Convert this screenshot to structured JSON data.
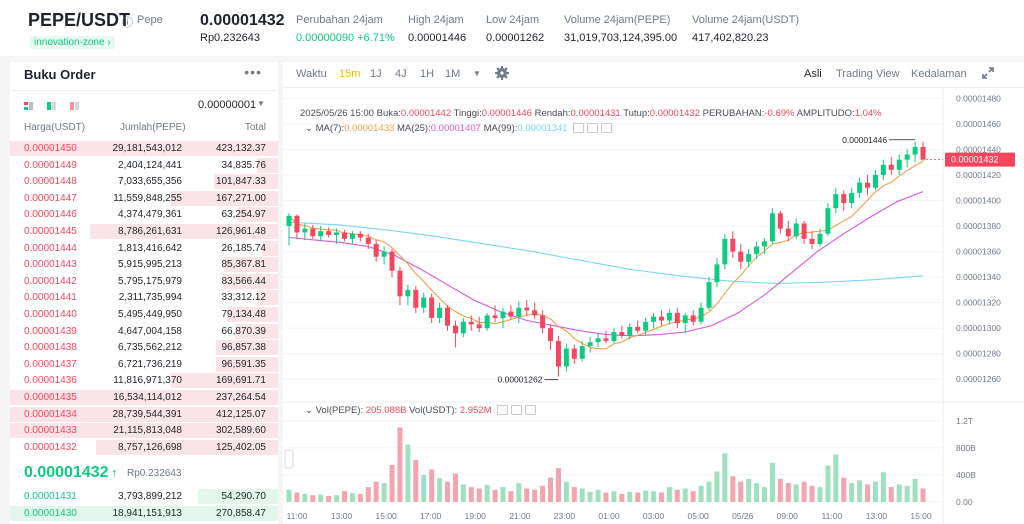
{
  "header": {
    "pair": "PEPE/USDT",
    "coin_name": "Pepe",
    "zone": "innovation-zone",
    "last_price": "0.00001432",
    "last_price_idr": "Rp0.232643",
    "stats": [
      {
        "label": "Perubahan 24jam",
        "value": "0.00000090 +6.71%",
        "color": "#0ecb81"
      },
      {
        "label": "High 24jam",
        "value": "0.00001446",
        "color": "#1e2329"
      },
      {
        "label": "Low 24jam",
        "value": "0.00001262",
        "color": "#1e2329"
      },
      {
        "label": "Volume 24jam(PEPE)",
        "value": "31,019,703,124,395.00",
        "color": "#1e2329"
      },
      {
        "label": "Volume 24jam(USDT)",
        "value": "417,402,820.23",
        "color": "#1e2329"
      }
    ]
  },
  "orderbook": {
    "title": "Buku Order",
    "more_icon": "more-dots-icon",
    "tick_size": "0.00000001",
    "headers": {
      "price": "Harga(USDT)",
      "amount": "Jumlah(PEPE)",
      "total": "Total"
    },
    "asks": [
      {
        "price": "0.00001450",
        "amount": "29,181,543,012",
        "total": "423,132.37",
        "depth": 1.0
      },
      {
        "price": "0.00001449",
        "amount": "2,404,124,441",
        "total": "34,835.76",
        "depth": 0.08
      },
      {
        "price": "0.00001448",
        "amount": "7,033,655,356",
        "total": "101,847.33",
        "depth": 0.24
      },
      {
        "price": "0.00001447",
        "amount": "11,559,848,255",
        "total": "167,271.00",
        "depth": 0.4
      },
      {
        "price": "0.00001446",
        "amount": "4,374,479,361",
        "total": "63,254.97",
        "depth": 0.15
      },
      {
        "price": "0.00001445",
        "amount": "8,786,261,631",
        "total": "126,961.48",
        "depth": 0.7
      },
      {
        "price": "0.00001444",
        "amount": "1,813,416,642",
        "total": "26,185.74",
        "depth": 0.06
      },
      {
        "price": "0.00001443",
        "amount": "5,915,995,213",
        "total": "85,367.81",
        "depth": 0.2
      },
      {
        "price": "0.00001442",
        "amount": "5,795,175,979",
        "total": "83,566.44",
        "depth": 0.2
      },
      {
        "price": "0.00001441",
        "amount": "2,311,735,994",
        "total": "33,312.12",
        "depth": 0.08
      },
      {
        "price": "0.00001440",
        "amount": "5,495,449,950",
        "total": "79,134.48",
        "depth": 0.19
      },
      {
        "price": "0.00001439",
        "amount": "4,647,004,158",
        "total": "66,870.39",
        "depth": 0.16
      },
      {
        "price": "0.00001438",
        "amount": "6,735,562,212",
        "total": "96,857.38",
        "depth": 0.23
      },
      {
        "price": "0.00001437",
        "amount": "6,721,736,219",
        "total": "96,591.35",
        "depth": 0.23
      },
      {
        "price": "0.00001436",
        "amount": "11,816,971,370",
        "total": "169,691.71",
        "depth": 0.4
      },
      {
        "price": "0.00001435",
        "amount": "16,534,114,012",
        "total": "237,264.54",
        "depth": 1.0
      },
      {
        "price": "0.00001434",
        "amount": "28,739,544,391",
        "total": "412,125.07",
        "depth": 1.0
      },
      {
        "price": "0.00001433",
        "amount": "21,115,813,048",
        "total": "302,589.60",
        "depth": 1.0
      },
      {
        "price": "0.00001432",
        "amount": "8,757,126,698",
        "total": "125,402.05",
        "depth": 0.68
      }
    ],
    "mid_price": "0.00001432",
    "mid_arrow": "↑",
    "mid_price_idr": "Rp0.232643",
    "bids": [
      {
        "price": "0.00001431",
        "amount": "3,793,899,212",
        "total": "54,290.70",
        "depth": 0.3
      },
      {
        "price": "0.00001430",
        "amount": "18,941,151,913",
        "total": "270,858.47",
        "depth": 1.0
      }
    ]
  },
  "toolbar": {
    "time_label": "Waktu",
    "intervals": [
      "15m",
      "1J",
      "4J",
      "1H",
      "1M"
    ],
    "active_interval": "15m",
    "views": [
      "Asli",
      "Trading View",
      "Kedalaman"
    ],
    "active_view": "Asli",
    "settings_icon": "gear-icon",
    "fullscreen_icon": "expand-icon"
  },
  "legend": {
    "date": "2025/05/26 15:00",
    "open_label": "Buka:",
    "open": "0.00001442",
    "high_label": "Tinggi:",
    "high": "0.00001446",
    "low_label": "Rendah:",
    "low": "0.00001431",
    "close_label": "Tutup:",
    "close": "0.00001432",
    "change_label": "PERUBAHAN:",
    "change": "-0.69%",
    "amp_label": "AMPLITUDO:",
    "amp": "1.04%",
    "ma7_label": "MA(7):",
    "ma7": "0.00001433",
    "ma25_label": "MA(25):",
    "ma25": "0.00001407",
    "ma99_label": "MA(99):",
    "ma99": "0.00001341",
    "vol_pepe_label": "Vol(PEPE):",
    "vol_pepe": "205.088B",
    "vol_usdt_label": "Vol(USDT):",
    "vol_usdt": "2.952M"
  },
  "chart_data": {
    "type": "candlestick",
    "interval": "15m",
    "price_axis_ticks": [
      "0.00001480",
      "0.00001460",
      "0.00001440",
      "0.00001420",
      "0.00001400",
      "0.00001380",
      "0.00001360",
      "0.00001340",
      "0.00001320",
      "0.00001300",
      "0.00001280",
      "0.00001260"
    ],
    "price_range": [
      1.25e-05,
      1.485e-05
    ],
    "volume_axis_ticks": [
      "1.2T",
      "800B",
      "400B",
      "0.00"
    ],
    "volume_range": [
      0,
      1.3
    ],
    "volume_unit": "T",
    "time_axis_ticks": [
      "11:00",
      "13:00",
      "15:00",
      "17:00",
      "19:00",
      "21:00",
      "23:00",
      "01:00",
      "03:00",
      "05:00",
      "05/26",
      "09:00",
      "11:00",
      "13:00",
      "15:00"
    ],
    "high_marker": "0.00001446",
    "low_marker": "0.00001262",
    "current_price_tag": "0.00001432",
    "colors": {
      "up": "#0ecb81",
      "down": "#f6465d",
      "up_vol": "#9fe0c0",
      "down_vol": "#f3a4ae",
      "ma7": "#f0a04b",
      "ma25": "#d958d9",
      "ma99": "#7ad7f0"
    },
    "ma25": [
      1.371e-05,
      1.369e-05,
      1.367e-05,
      1.364e-05,
      1.357e-05,
      1.346e-05,
      1.334e-05,
      1.322e-05,
      1.313e-05,
      1.306e-05,
      1.302e-05,
      1.298e-05,
      1.295e-05,
      1.294e-05,
      1.295e-05,
      1.297e-05,
      1.302e-05,
      1.312e-05,
      1.326e-05,
      1.343e-05,
      1.36e-05,
      1.374e-05,
      1.387e-05,
      1.399e-05,
      1.407e-05
    ],
    "ma99": [
      1.383e-05,
      1.381e-05,
      1.377e-05,
      1.372e-05,
      1.366e-05,
      1.36e-05,
      1.353e-05,
      1.346e-05,
      1.341e-05,
      1.337e-05,
      1.335e-05,
      1.336e-05,
      1.338e-05,
      1.341e-05
    ],
    "candles": [
      {
        "o": 1.38e-05,
        "h": 1.39e-05,
        "l": 1.365e-05,
        "c": 1.388e-05
      },
      {
        "o": 1.388e-05,
        "h": 1.389e-05,
        "l": 1.37e-05,
        "c": 1.375e-05
      },
      {
        "o": 1.375e-05,
        "h": 1.382e-05,
        "l": 1.369e-05,
        "c": 1.378e-05
      },
      {
        "o": 1.378e-05,
        "h": 1.381e-05,
        "l": 1.37e-05,
        "c": 1.372e-05
      },
      {
        "o": 1.372e-05,
        "h": 1.38e-05,
        "l": 1.368e-05,
        "c": 1.376e-05
      },
      {
        "o": 1.376e-05,
        "h": 1.379e-05,
        "l": 1.371e-05,
        "c": 1.373e-05
      },
      {
        "o": 1.373e-05,
        "h": 1.378e-05,
        "l": 1.366e-05,
        "c": 1.375e-05
      },
      {
        "o": 1.375e-05,
        "h": 1.377e-05,
        "l": 1.368e-05,
        "c": 1.37e-05
      },
      {
        "o": 1.37e-05,
        "h": 1.376e-05,
        "l": 1.366e-05,
        "c": 1.374e-05
      },
      {
        "o": 1.374e-05,
        "h": 1.376e-05,
        "l": 1.368e-05,
        "c": 1.371e-05
      },
      {
        "o": 1.371e-05,
        "h": 1.374e-05,
        "l": 1.362e-05,
        "c": 1.366e-05
      },
      {
        "o": 1.366e-05,
        "h": 1.369e-05,
        "l": 1.352e-05,
        "c": 1.356e-05
      },
      {
        "o": 1.356e-05,
        "h": 1.364e-05,
        "l": 1.35e-05,
        "c": 1.36e-05
      },
      {
        "o": 1.36e-05,
        "h": 1.362e-05,
        "l": 1.34e-05,
        "c": 1.345e-05
      },
      {
        "o": 1.345e-05,
        "h": 1.348e-05,
        "l": 1.318e-05,
        "c": 1.325e-05
      },
      {
        "o": 1.325e-05,
        "h": 1.334e-05,
        "l": 1.318e-05,
        "c": 1.33e-05
      },
      {
        "o": 1.33e-05,
        "h": 1.333e-05,
        "l": 1.312e-05,
        "c": 1.316e-05
      },
      {
        "o": 1.316e-05,
        "h": 1.328e-05,
        "l": 1.312e-05,
        "c": 1.324e-05
      },
      {
        "o": 1.324e-05,
        "h": 1.327e-05,
        "l": 1.304e-05,
        "c": 1.308e-05
      },
      {
        "o": 1.308e-05,
        "h": 1.32e-05,
        "l": 1.304e-05,
        "c": 1.316e-05
      },
      {
        "o": 1.316e-05,
        "h": 1.318e-05,
        "l": 1.298e-05,
        "c": 1.302e-05
      },
      {
        "o": 1.302e-05,
        "h": 1.306e-05,
        "l": 1.285e-05,
        "c": 1.296e-05
      },
      {
        "o": 1.296e-05,
        "h": 1.308e-05,
        "l": 1.293e-05,
        "c": 1.305e-05
      },
      {
        "o": 1.305e-05,
        "h": 1.31e-05,
        "l": 1.298e-05,
        "c": 1.303e-05
      },
      {
        "o": 1.303e-05,
        "h": 1.309e-05,
        "l": 1.297e-05,
        "c": 1.3e-05
      },
      {
        "o": 1.3e-05,
        "h": 1.312e-05,
        "l": 1.298e-05,
        "c": 1.31e-05
      },
      {
        "o": 1.31e-05,
        "h": 1.318e-05,
        "l": 1.305e-05,
        "c": 1.308e-05
      },
      {
        "o": 1.308e-05,
        "h": 1.316e-05,
        "l": 1.3e-05,
        "c": 1.313e-05
      },
      {
        "o": 1.313e-05,
        "h": 1.318e-05,
        "l": 1.307e-05,
        "c": 1.309e-05
      },
      {
        "o": 1.309e-05,
        "h": 1.321e-05,
        "l": 1.304e-05,
        "c": 1.316e-05
      },
      {
        "o": 1.316e-05,
        "h": 1.322e-05,
        "l": 1.31e-05,
        "c": 1.314e-05
      },
      {
        "o": 1.314e-05,
        "h": 1.32e-05,
        "l": 1.307e-05,
        "c": 1.31e-05
      },
      {
        "o": 1.31e-05,
        "h": 1.314e-05,
        "l": 1.296e-05,
        "c": 1.3e-05
      },
      {
        "o": 1.3e-05,
        "h": 1.303e-05,
        "l": 1.283e-05,
        "c": 1.29e-05
      },
      {
        "o": 1.29e-05,
        "h": 1.294e-05,
        "l": 1.262e-05,
        "c": 1.27e-05
      },
      {
        "o": 1.27e-05,
        "h": 1.288e-05,
        "l": 1.266e-05,
        "c": 1.284e-05
      },
      {
        "o": 1.284e-05,
        "h": 1.287e-05,
        "l": 1.272e-05,
        "c": 1.276e-05
      },
      {
        "o": 1.276e-05,
        "h": 1.29e-05,
        "l": 1.274e-05,
        "c": 1.286e-05
      },
      {
        "o": 1.286e-05,
        "h": 1.293e-05,
        "l": 1.281e-05,
        "c": 1.289e-05
      },
      {
        "o": 1.289e-05,
        "h": 1.296e-05,
        "l": 1.285e-05,
        "c": 1.292e-05
      },
      {
        "o": 1.292e-05,
        "h": 1.298e-05,
        "l": 1.288e-05,
        "c": 1.29e-05
      },
      {
        "o": 1.29e-05,
        "h": 1.3e-05,
        "l": 1.288e-05,
        "c": 1.297e-05
      },
      {
        "o": 1.297e-05,
        "h": 1.302e-05,
        "l": 1.292e-05,
        "c": 1.294e-05
      },
      {
        "o": 1.294e-05,
        "h": 1.304e-05,
        "l": 1.291e-05,
        "c": 1.301e-05
      },
      {
        "o": 1.301e-05,
        "h": 1.306e-05,
        "l": 1.296e-05,
        "c": 1.298e-05
      },
      {
        "o": 1.298e-05,
        "h": 1.308e-05,
        "l": 1.294e-05,
        "c": 1.305e-05
      },
      {
        "o": 1.305e-05,
        "h": 1.312e-05,
        "l": 1.3e-05,
        "c": 1.309e-05
      },
      {
        "o": 1.309e-05,
        "h": 1.314e-05,
        "l": 1.302e-05,
        "c": 1.306e-05
      },
      {
        "o": 1.306e-05,
        "h": 1.315e-05,
        "l": 1.303e-05,
        "c": 1.312e-05
      },
      {
        "o": 1.312e-05,
        "h": 1.316e-05,
        "l": 1.3e-05,
        "c": 1.304e-05
      },
      {
        "o": 1.304e-05,
        "h": 1.312e-05,
        "l": 1.296e-05,
        "c": 1.31e-05
      },
      {
        "o": 1.31e-05,
        "h": 1.314e-05,
        "l": 1.302e-05,
        "c": 1.305e-05
      },
      {
        "o": 1.305e-05,
        "h": 1.32e-05,
        "l": 1.303e-05,
        "c": 1.316e-05
      },
      {
        "o": 1.316e-05,
        "h": 1.34e-05,
        "l": 1.314e-05,
        "c": 1.336e-05
      },
      {
        "o": 1.336e-05,
        "h": 1.355e-05,
        "l": 1.332e-05,
        "c": 1.35e-05
      },
      {
        "o": 1.35e-05,
        "h": 1.374e-05,
        "l": 1.346e-05,
        "c": 1.37e-05
      },
      {
        "o": 1.37e-05,
        "h": 1.376e-05,
        "l": 1.355e-05,
        "c": 1.36e-05
      },
      {
        "o": 1.36e-05,
        "h": 1.366e-05,
        "l": 1.346e-05,
        "c": 1.352e-05
      },
      {
        "o": 1.352e-05,
        "h": 1.362e-05,
        "l": 1.348e-05,
        "c": 1.358e-05
      },
      {
        "o": 1.358e-05,
        "h": 1.368e-05,
        "l": 1.354e-05,
        "c": 1.364e-05
      },
      {
        "o": 1.364e-05,
        "h": 1.37e-05,
        "l": 1.358e-05,
        "c": 1.368e-05
      },
      {
        "o": 1.368e-05,
        "h": 1.394e-05,
        "l": 1.366e-05,
        "c": 1.39e-05
      },
      {
        "o": 1.39e-05,
        "h": 1.392e-05,
        "l": 1.374e-05,
        "c": 1.378e-05
      },
      {
        "o": 1.378e-05,
        "h": 1.384e-05,
        "l": 1.368e-05,
        "c": 1.372e-05
      },
      {
        "o": 1.372e-05,
        "h": 1.386e-05,
        "l": 1.37e-05,
        "c": 1.382e-05
      },
      {
        "o": 1.382e-05,
        "h": 1.384e-05,
        "l": 1.366e-05,
        "c": 1.37e-05
      },
      {
        "o": 1.37e-05,
        "h": 1.376e-05,
        "l": 1.362e-05,
        "c": 1.366e-05
      },
      {
        "o": 1.366e-05,
        "h": 1.378e-05,
        "l": 1.364e-05,
        "c": 1.374e-05
      },
      {
        "o": 1.374e-05,
        "h": 1.398e-05,
        "l": 1.372e-05,
        "c": 1.394e-05
      },
      {
        "o": 1.394e-05,
        "h": 1.41e-05,
        "l": 1.39e-05,
        "c": 1.405e-05
      },
      {
        "o": 1.405e-05,
        "h": 1.408e-05,
        "l": 1.392e-05,
        "c": 1.398e-05
      },
      {
        "o": 1.398e-05,
        "h": 1.41e-05,
        "l": 1.394e-05,
        "c": 1.406e-05
      },
      {
        "o": 1.406e-05,
        "h": 1.418e-05,
        "l": 1.402e-05,
        "c": 1.414e-05
      },
      {
        "o": 1.414e-05,
        "h": 1.42e-05,
        "l": 1.404e-05,
        "c": 1.41e-05
      },
      {
        "o": 1.41e-05,
        "h": 1.424e-05,
        "l": 1.408e-05,
        "c": 1.42e-05
      },
      {
        "o": 1.42e-05,
        "h": 1.432e-05,
        "l": 1.416e-05,
        "c": 1.428e-05
      },
      {
        "o": 1.428e-05,
        "h": 1.434e-05,
        "l": 1.42e-05,
        "c": 1.424e-05
      },
      {
        "o": 1.424e-05,
        "h": 1.436e-05,
        "l": 1.42e-05,
        "c": 1.432e-05
      },
      {
        "o": 1.432e-05,
        "h": 1.44e-05,
        "l": 1.426e-05,
        "c": 1.436e-05
      },
      {
        "o": 1.436e-05,
        "h": 1.446e-05,
        "l": 1.43e-05,
        "c": 1.442e-05
      },
      {
        "o": 1.442e-05,
        "h": 1.446e-05,
        "l": 1.431e-05,
        "c": 1.432e-05
      }
    ],
    "volumes": [
      0.18,
      0.14,
      0.12,
      0.1,
      0.11,
      0.09,
      0.1,
      0.16,
      0.13,
      0.12,
      0.22,
      0.3,
      0.28,
      0.55,
      1.1,
      0.85,
      0.62,
      0.4,
      0.48,
      0.35,
      0.3,
      0.42,
      0.26,
      0.22,
      0.2,
      0.25,
      0.18,
      0.22,
      0.16,
      0.28,
      0.2,
      0.18,
      0.24,
      0.36,
      0.5,
      0.3,
      0.22,
      0.2,
      0.15,
      0.18,
      0.14,
      0.16,
      0.12,
      0.15,
      0.14,
      0.17,
      0.16,
      0.14,
      0.22,
      0.18,
      0.2,
      0.16,
      0.24,
      0.3,
      0.45,
      0.72,
      0.38,
      0.3,
      0.34,
      0.28,
      0.22,
      0.58,
      0.34,
      0.28,
      0.26,
      0.3,
      0.24,
      0.22,
      0.54,
      0.7,
      0.36,
      0.28,
      0.32,
      0.26,
      0.3,
      0.44,
      0.22,
      0.26,
      0.24,
      0.34,
      0.2
    ]
  }
}
